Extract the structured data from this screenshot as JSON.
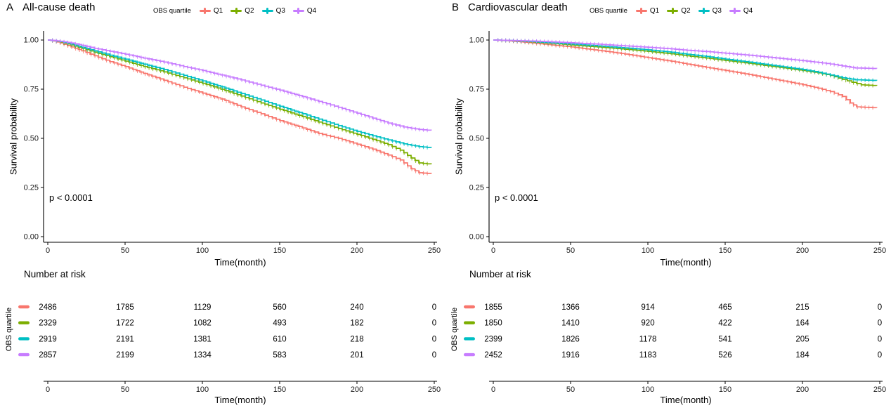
{
  "figure": {
    "background": "#ffffff"
  },
  "chart_data": [
    {
      "type": "line",
      "km_step": true,
      "panel_label": "A",
      "title": "All-cause death",
      "legend_title": "OBS quartile",
      "legend_position": "top",
      "annotation": "p < 0.0001",
      "xlabel": "Time(month)",
      "ylabel": "Survival probability",
      "xlim": [
        0,
        250
      ],
      "ylim": [
        0,
        1
      ],
      "xticks": [
        0,
        50,
        100,
        150,
        200,
        250
      ],
      "yticks": [
        0,
        0.25,
        0.5,
        0.75,
        1
      ],
      "ytick_labels": [
        "0.00",
        "0.25",
        "0.50",
        "0.75",
        "1.00"
      ],
      "grid": false,
      "series": [
        {
          "name": "Q1",
          "color": "#F8766D",
          "points": [
            [
              0,
              1.0
            ],
            [
              4,
              0.995
            ],
            [
              8,
              0.985
            ],
            [
              15,
              0.965
            ],
            [
              22,
              0.945
            ],
            [
              30,
              0.92
            ],
            [
              40,
              0.89
            ],
            [
              50,
              0.865
            ],
            [
              62,
              0.83
            ],
            [
              75,
              0.795
            ],
            [
              88,
              0.76
            ],
            [
              100,
              0.73
            ],
            [
              112,
              0.7
            ],
            [
              125,
              0.66
            ],
            [
              138,
              0.625
            ],
            [
              150,
              0.59
            ],
            [
              162,
              0.56
            ],
            [
              175,
              0.525
            ],
            [
              188,
              0.5
            ],
            [
              200,
              0.47
            ],
            [
              210,
              0.445
            ],
            [
              220,
              0.415
            ],
            [
              228,
              0.39
            ],
            [
              235,
              0.345
            ],
            [
              240,
              0.325
            ],
            [
              248,
              0.32
            ]
          ]
        },
        {
          "name": "Q2",
          "color": "#7CAE00",
          "points": [
            [
              0,
              1.0
            ],
            [
              4,
              0.997
            ],
            [
              8,
              0.99
            ],
            [
              15,
              0.975
            ],
            [
              22,
              0.958
            ],
            [
              30,
              0.938
            ],
            [
              40,
              0.915
            ],
            [
              50,
              0.893
            ],
            [
              62,
              0.865
            ],
            [
              75,
              0.838
            ],
            [
              88,
              0.808
            ],
            [
              100,
              0.78
            ],
            [
              112,
              0.75
            ],
            [
              125,
              0.715
            ],
            [
              138,
              0.68
            ],
            [
              150,
              0.648
            ],
            [
              162,
              0.617
            ],
            [
              175,
              0.583
            ],
            [
              188,
              0.55
            ],
            [
              200,
              0.52
            ],
            [
              210,
              0.495
            ],
            [
              220,
              0.468
            ],
            [
              228,
              0.44
            ],
            [
              235,
              0.4
            ],
            [
              240,
              0.375
            ],
            [
              248,
              0.368
            ]
          ]
        },
        {
          "name": "Q3",
          "color": "#00BFC4",
          "points": [
            [
              0,
              1.0
            ],
            [
              4,
              0.997
            ],
            [
              8,
              0.992
            ],
            [
              15,
              0.98
            ],
            [
              22,
              0.963
            ],
            [
              30,
              0.945
            ],
            [
              40,
              0.923
            ],
            [
              50,
              0.903
            ],
            [
              62,
              0.877
            ],
            [
              75,
              0.85
            ],
            [
              88,
              0.82
            ],
            [
              100,
              0.792
            ],
            [
              112,
              0.762
            ],
            [
              125,
              0.728
            ],
            [
              138,
              0.695
            ],
            [
              150,
              0.663
            ],
            [
              162,
              0.632
            ],
            [
              175,
              0.598
            ],
            [
              188,
              0.565
            ],
            [
              200,
              0.535
            ],
            [
              210,
              0.513
            ],
            [
              220,
              0.492
            ],
            [
              230,
              0.472
            ],
            [
              240,
              0.458
            ],
            [
              248,
              0.452
            ]
          ]
        },
        {
          "name": "Q4",
          "color": "#C77CFF",
          "points": [
            [
              0,
              1.0
            ],
            [
              4,
              0.998
            ],
            [
              8,
              0.994
            ],
            [
              15,
              0.985
            ],
            [
              22,
              0.973
            ],
            [
              30,
              0.958
            ],
            [
              40,
              0.943
            ],
            [
              50,
              0.928
            ],
            [
              62,
              0.908
            ],
            [
              75,
              0.888
            ],
            [
              88,
              0.865
            ],
            [
              100,
              0.845
            ],
            [
              112,
              0.822
            ],
            [
              125,
              0.797
            ],
            [
              138,
              0.77
            ],
            [
              150,
              0.745
            ],
            [
              162,
              0.718
            ],
            [
              175,
              0.688
            ],
            [
              188,
              0.658
            ],
            [
              200,
              0.628
            ],
            [
              210,
              0.603
            ],
            [
              220,
              0.578
            ],
            [
              230,
              0.558
            ],
            [
              240,
              0.545
            ],
            [
              248,
              0.54
            ]
          ]
        }
      ],
      "number_at_risk": {
        "title": "Number at risk",
        "axis_label": "OBS quartile",
        "times": [
          0,
          50,
          100,
          150,
          200,
          250
        ],
        "rows": [
          {
            "name": "Q1",
            "color": "#F8766D",
            "counts": [
              2486,
              1785,
              1129,
              560,
              240,
              0
            ]
          },
          {
            "name": "Q2",
            "color": "#7CAE00",
            "counts": [
              2329,
              1722,
              1082,
              493,
              182,
              0
            ]
          },
          {
            "name": "Q3",
            "color": "#00BFC4",
            "counts": [
              2919,
              2191,
              1381,
              610,
              218,
              0
            ]
          },
          {
            "name": "Q4",
            "color": "#C77CFF",
            "counts": [
              2857,
              2199,
              1334,
              583,
              201,
              0
            ]
          }
        ]
      }
    },
    {
      "type": "line",
      "km_step": true,
      "panel_label": "B",
      "title": "Cardiovascular death",
      "legend_title": "OBS quartile",
      "legend_position": "top",
      "annotation": "p < 0.0001",
      "xlabel": "Time(month)",
      "ylabel": "Survival probability",
      "xlim": [
        0,
        250
      ],
      "ylim": [
        0,
        1
      ],
      "xticks": [
        0,
        50,
        100,
        150,
        200,
        250
      ],
      "yticks": [
        0,
        0.25,
        0.5,
        0.75,
        1
      ],
      "ytick_labels": [
        "0.00",
        "0.25",
        "0.50",
        "0.75",
        "1.00"
      ],
      "grid": false,
      "series": [
        {
          "name": "Q1",
          "color": "#F8766D",
          "points": [
            [
              0,
              1.0
            ],
            [
              8,
              0.997
            ],
            [
              15,
              0.992
            ],
            [
              25,
              0.985
            ],
            [
              40,
              0.973
            ],
            [
              50,
              0.965
            ],
            [
              65,
              0.95
            ],
            [
              75,
              0.94
            ],
            [
              90,
              0.923
            ],
            [
              100,
              0.91
            ],
            [
              115,
              0.892
            ],
            [
              125,
              0.878
            ],
            [
              140,
              0.858
            ],
            [
              150,
              0.845
            ],
            [
              165,
              0.825
            ],
            [
              175,
              0.81
            ],
            [
              190,
              0.788
            ],
            [
              200,
              0.773
            ],
            [
              210,
              0.755
            ],
            [
              218,
              0.738
            ],
            [
              226,
              0.713
            ],
            [
              231,
              0.68
            ],
            [
              235,
              0.66
            ],
            [
              248,
              0.655
            ]
          ]
        },
        {
          "name": "Q2",
          "color": "#7CAE00",
          "points": [
            [
              0,
              1.0
            ],
            [
              10,
              0.997
            ],
            [
              25,
              0.99
            ],
            [
              40,
              0.982
            ],
            [
              50,
              0.975
            ],
            [
              65,
              0.966
            ],
            [
              75,
              0.96
            ],
            [
              90,
              0.95
            ],
            [
              100,
              0.942
            ],
            [
              115,
              0.93
            ],
            [
              125,
              0.92
            ],
            [
              140,
              0.906
            ],
            [
              150,
              0.896
            ],
            [
              165,
              0.882
            ],
            [
              175,
              0.871
            ],
            [
              190,
              0.856
            ],
            [
              200,
              0.845
            ],
            [
              210,
              0.833
            ],
            [
              218,
              0.82
            ],
            [
              226,
              0.8
            ],
            [
              232,
              0.785
            ],
            [
              238,
              0.772
            ],
            [
              248,
              0.768
            ]
          ]
        },
        {
          "name": "Q3",
          "color": "#00BFC4",
          "points": [
            [
              0,
              1.0
            ],
            [
              10,
              0.998
            ],
            [
              25,
              0.992
            ],
            [
              40,
              0.985
            ],
            [
              50,
              0.98
            ],
            [
              65,
              0.972
            ],
            [
              75,
              0.966
            ],
            [
              90,
              0.957
            ],
            [
              100,
              0.95
            ],
            [
              115,
              0.938
            ],
            [
              125,
              0.928
            ],
            [
              140,
              0.914
            ],
            [
              150,
              0.903
            ],
            [
              165,
              0.888
            ],
            [
              175,
              0.877
            ],
            [
              190,
              0.861
            ],
            [
              200,
              0.85
            ],
            [
              210,
              0.836
            ],
            [
              218,
              0.822
            ],
            [
              226,
              0.808
            ],
            [
              234,
              0.798
            ],
            [
              248,
              0.794
            ]
          ]
        },
        {
          "name": "Q4",
          "color": "#C77CFF",
          "points": [
            [
              0,
              1.0
            ],
            [
              10,
              0.998
            ],
            [
              25,
              0.995
            ],
            [
              40,
              0.99
            ],
            [
              50,
              0.986
            ],
            [
              65,
              0.98
            ],
            [
              75,
              0.975
            ],
            [
              90,
              0.968
            ],
            [
              100,
              0.963
            ],
            [
              115,
              0.955
            ],
            [
              125,
              0.948
            ],
            [
              140,
              0.94
            ],
            [
              150,
              0.933
            ],
            [
              165,
              0.923
            ],
            [
              175,
              0.915
            ],
            [
              190,
              0.903
            ],
            [
              200,
              0.895
            ],
            [
              210,
              0.886
            ],
            [
              218,
              0.878
            ],
            [
              226,
              0.868
            ],
            [
              234,
              0.858
            ],
            [
              248,
              0.855
            ]
          ]
        }
      ],
      "number_at_risk": {
        "title": "Number at risk",
        "axis_label": "OBS quartile",
        "times": [
          0,
          50,
          100,
          150,
          200,
          250
        ],
        "rows": [
          {
            "name": "Q1",
            "color": "#F8766D",
            "counts": [
              1855,
              1366,
              914,
              465,
              215,
              0
            ]
          },
          {
            "name": "Q2",
            "color": "#7CAE00",
            "counts": [
              1850,
              1410,
              920,
              422,
              164,
              0
            ]
          },
          {
            "name": "Q3",
            "color": "#00BFC4",
            "counts": [
              2399,
              1826,
              1178,
              541,
              205,
              0
            ]
          },
          {
            "name": "Q4",
            "color": "#C77CFF",
            "counts": [
              2452,
              1916,
              1183,
              526,
              184,
              0
            ]
          }
        ]
      }
    }
  ]
}
